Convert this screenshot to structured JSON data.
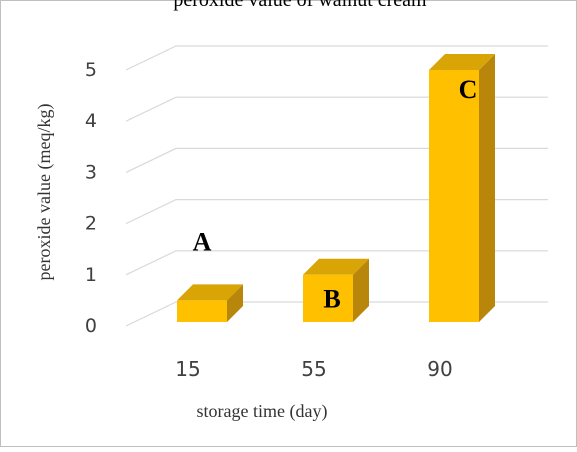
{
  "chart_data": {
    "type": "bar",
    "title": "peroxide value of walnut cream",
    "xlabel": "storage time (day)",
    "ylabel": "peroxide value (meq/kg)",
    "categories": [
      "15",
      "55",
      "90"
    ],
    "values": [
      0.5,
      1.0,
      5.0
    ],
    "significance_letters": [
      "A",
      "B",
      "C"
    ],
    "ylim": [
      0,
      5
    ],
    "yticks": [
      "0",
      "1",
      "2",
      "3",
      "4",
      "5"
    ],
    "grid": true,
    "legend": "none",
    "style": "3d-column",
    "colors": {
      "bar_front": "#FFC000",
      "bar_side": "#B8860B",
      "bar_top": "#D9A406",
      "grid": "#D9D9D9",
      "frame": "#BFBFBF"
    }
  }
}
